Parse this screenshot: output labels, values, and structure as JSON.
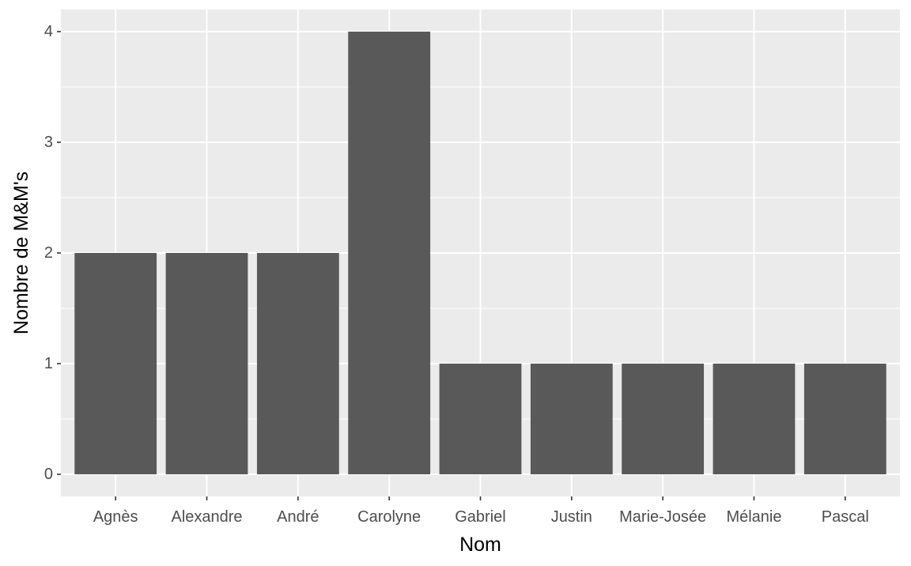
{
  "chart_data": {
    "type": "bar",
    "categories": [
      "Agnès",
      "Alexandre",
      "André",
      "Carolyne",
      "Gabriel",
      "Justin",
      "Marie-Josée",
      "Mélanie",
      "Pascal"
    ],
    "values": [
      2,
      2,
      2,
      4,
      1,
      1,
      1,
      1,
      1
    ],
    "xlabel": "Nom",
    "ylabel": "Nombre de M&M's",
    "ylim": [
      -0.2,
      4.2
    ],
    "yticks": [
      0,
      1,
      2,
      3,
      4
    ],
    "grid": true,
    "colors": {
      "panel": "#EBEBEB",
      "bar": "#595959",
      "grid_major": "#FFFFFF",
      "tick": "#333333",
      "tick_label": "#4D4D4D",
      "axis_title": "#000000"
    }
  }
}
